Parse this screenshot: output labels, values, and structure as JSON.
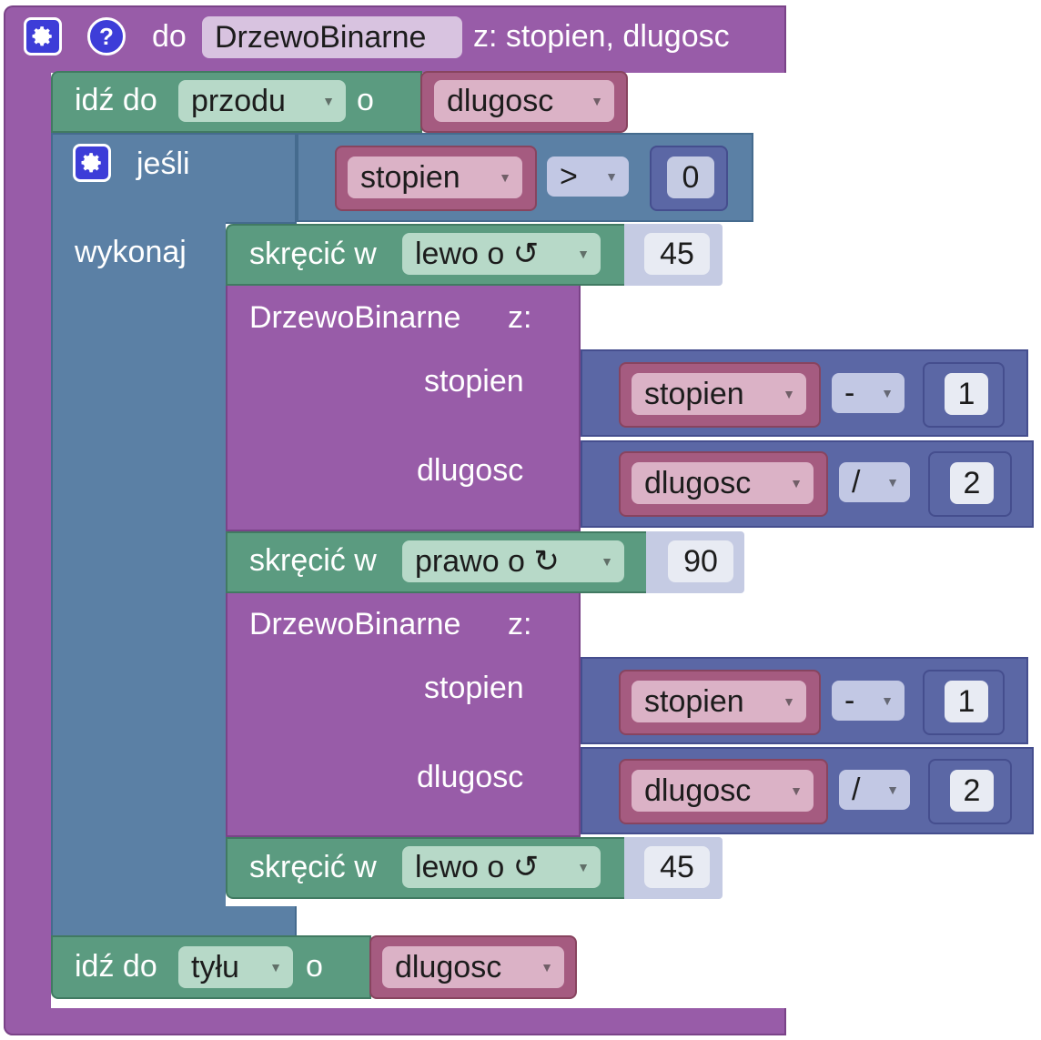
{
  "procedure": {
    "keyword": "do",
    "name": "DrzewoBinarne",
    "params_label": "z: stopien, dlugosc",
    "gear_icon": "gear-icon",
    "help_icon": "?"
  },
  "forward": {
    "label": "idź do",
    "direction": "przodu",
    "conj": "o",
    "var": "dlugosc"
  },
  "if_block": {
    "label": "jeśli",
    "do_label": "wykonaj",
    "condition": {
      "var": "stopien",
      "op": ">",
      "value": "0"
    }
  },
  "turn1": {
    "label": "skręcić w",
    "dir": "lewo o ↺",
    "value": "45"
  },
  "call1": {
    "name": "DrzewoBinarne",
    "with": "z:",
    "arg1": {
      "name": "stopien",
      "var": "stopien",
      "op": "-",
      "value": "1"
    },
    "arg2": {
      "name": "dlugosc",
      "var": "dlugosc",
      "op": "/",
      "value": "2"
    }
  },
  "turn2": {
    "label": "skręcić w",
    "dir": "prawo o ↻",
    "value": "90"
  },
  "call2": {
    "name": "DrzewoBinarne",
    "with": "z:",
    "arg1": {
      "name": "stopien",
      "var": "stopien",
      "op": "-",
      "value": "1"
    },
    "arg2": {
      "name": "dlugosc",
      "var": "dlugosc",
      "op": "/",
      "value": "2"
    }
  },
  "turn3": {
    "label": "skręcić w",
    "dir": "lewo o ↺",
    "value": "45"
  },
  "backward": {
    "label": "idź do",
    "direction": "tyłu",
    "conj": "o",
    "var": "dlugosc"
  },
  "colors": {
    "procedure": "#985ca8",
    "turtle": "#5b9b80",
    "logic": "#5b80a5",
    "math": "#5b67a5",
    "variable": "#a55b80"
  }
}
